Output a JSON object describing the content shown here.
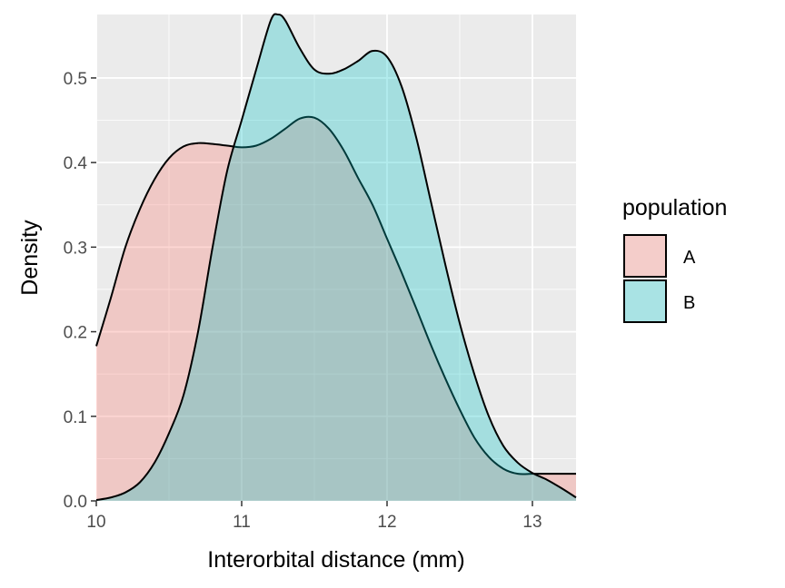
{
  "chart_data": {
    "type": "area",
    "subtype": "density",
    "xlabel": "Interorbital distance (mm)",
    "ylabel": "Density",
    "xlim": [
      10.0,
      13.3
    ],
    "ylim": [
      0.0,
      0.575
    ],
    "x_ticks": [
      10,
      11,
      12,
      13
    ],
    "x_tick_labels": [
      "10",
      "11",
      "12",
      "13"
    ],
    "y_ticks": [
      0.0,
      0.1,
      0.2,
      0.3,
      0.4,
      0.5
    ],
    "y_tick_labels": [
      "0.0",
      "0.1",
      "0.2",
      "0.3",
      "0.4",
      "0.5"
    ],
    "grid": true,
    "legend": {
      "title": "population",
      "position": "right"
    },
    "series": [
      {
        "name": "A",
        "fill": "#F8766D",
        "points": [
          [
            10.0,
            0.183
          ],
          [
            10.1,
            0.24
          ],
          [
            10.2,
            0.3
          ],
          [
            10.3,
            0.345
          ],
          [
            10.4,
            0.38
          ],
          [
            10.5,
            0.405
          ],
          [
            10.6,
            0.419
          ],
          [
            10.7,
            0.423
          ],
          [
            10.8,
            0.422
          ],
          [
            10.9,
            0.42
          ],
          [
            11.0,
            0.418
          ],
          [
            11.1,
            0.42
          ],
          [
            11.2,
            0.428
          ],
          [
            11.3,
            0.44
          ],
          [
            11.4,
            0.452
          ],
          [
            11.5,
            0.453
          ],
          [
            11.6,
            0.44
          ],
          [
            11.7,
            0.415
          ],
          [
            11.8,
            0.382
          ],
          [
            11.9,
            0.35
          ],
          [
            12.0,
            0.31
          ],
          [
            12.1,
            0.27
          ],
          [
            12.2,
            0.228
          ],
          [
            12.3,
            0.185
          ],
          [
            12.4,
            0.145
          ],
          [
            12.5,
            0.108
          ],
          [
            12.6,
            0.075
          ],
          [
            12.7,
            0.052
          ],
          [
            12.8,
            0.038
          ],
          [
            12.9,
            0.032
          ],
          [
            13.0,
            0.032
          ],
          [
            13.1,
            0.032
          ],
          [
            13.2,
            0.032
          ],
          [
            13.3,
            0.032
          ]
        ]
      },
      {
        "name": "B",
        "fill": "#00BFC4",
        "points": [
          [
            10.0,
            0.001
          ],
          [
            10.1,
            0.004
          ],
          [
            10.2,
            0.01
          ],
          [
            10.3,
            0.022
          ],
          [
            10.4,
            0.045
          ],
          [
            10.5,
            0.08
          ],
          [
            10.6,
            0.125
          ],
          [
            10.7,
            0.2
          ],
          [
            10.8,
            0.3
          ],
          [
            10.9,
            0.39
          ],
          [
            11.0,
            0.45
          ],
          [
            11.1,
            0.51
          ],
          [
            11.2,
            0.568
          ],
          [
            11.25,
            0.575
          ],
          [
            11.3,
            0.568
          ],
          [
            11.4,
            0.535
          ],
          [
            11.5,
            0.51
          ],
          [
            11.6,
            0.505
          ],
          [
            11.7,
            0.51
          ],
          [
            11.8,
            0.52
          ],
          [
            11.9,
            0.532
          ],
          [
            12.0,
            0.525
          ],
          [
            12.1,
            0.49
          ],
          [
            12.2,
            0.43
          ],
          [
            12.3,
            0.355
          ],
          [
            12.4,
            0.28
          ],
          [
            12.5,
            0.21
          ],
          [
            12.6,
            0.15
          ],
          [
            12.7,
            0.1
          ],
          [
            12.8,
            0.065
          ],
          [
            12.9,
            0.045
          ],
          [
            13.0,
            0.033
          ],
          [
            13.1,
            0.025
          ],
          [
            13.2,
            0.015
          ],
          [
            13.3,
            0.004
          ]
        ]
      }
    ]
  }
}
